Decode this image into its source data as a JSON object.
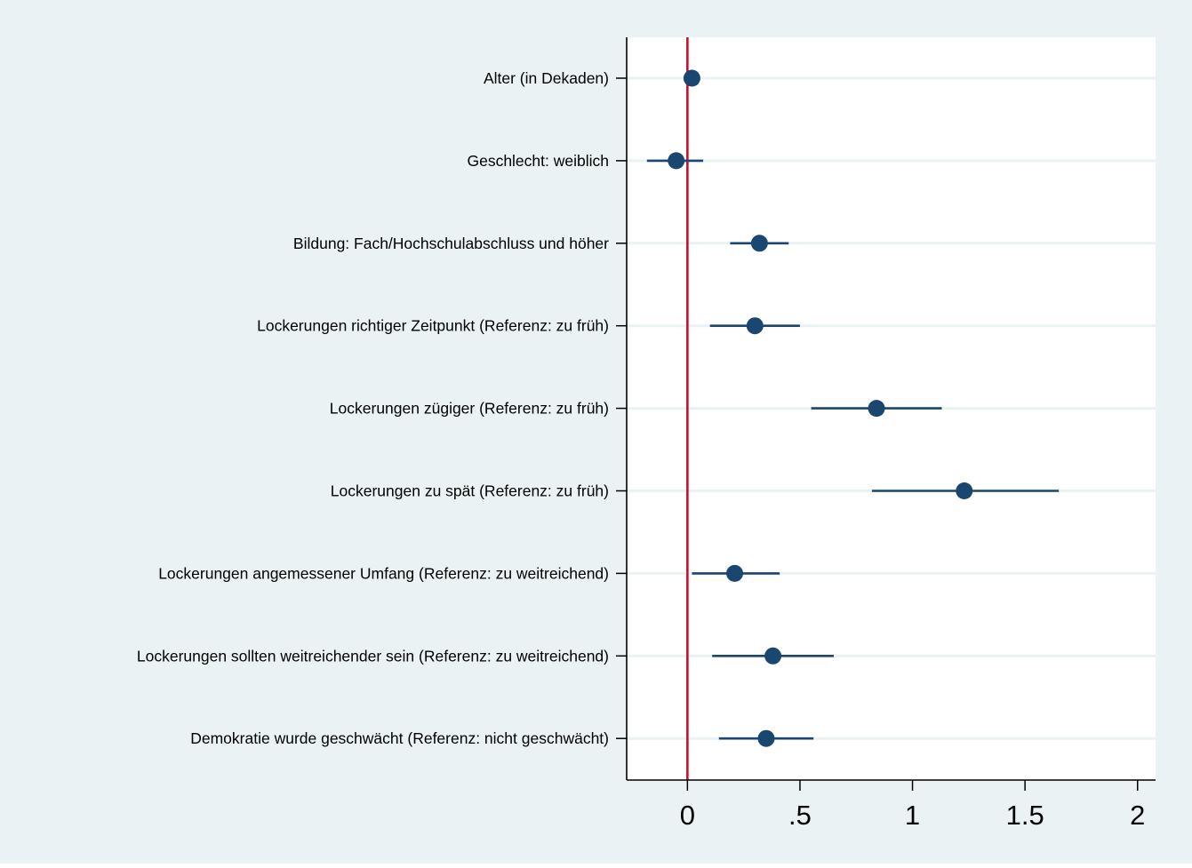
{
  "chart_data": {
    "type": "scatter",
    "subtype": "coefficient-plot",
    "title": "",
    "xlabel": "",
    "ylabel": "",
    "xlim": [
      -0.27,
      2.08
    ],
    "xticks": [
      0,
      0.5,
      1,
      1.5,
      2
    ],
    "xtick_labels": [
      "0",
      ".5",
      "1",
      "1.5",
      "2"
    ],
    "reference_line": {
      "x": 0,
      "color": "#c8102e"
    },
    "grid": "horizontal",
    "legend": "none",
    "colors": {
      "outer_background": "#eaf2f3",
      "plot_background": "#ffffff",
      "marker": "#1a476f",
      "gridline": "#eaf2f3",
      "axis": "#000000"
    },
    "rows": [
      {
        "label": "Alter (in Dekaden)",
        "estimate": 0.02,
        "lower": -0.01,
        "upper": 0.05
      },
      {
        "label": "Geschlecht: weiblich",
        "estimate": -0.05,
        "lower": -0.18,
        "upper": 0.07
      },
      {
        "label": "Bildung: Fach/Hochschulabschluss und höher",
        "estimate": 0.32,
        "lower": 0.19,
        "upper": 0.45
      },
      {
        "label": "Lockerungen richtiger Zeitpunkt (Referenz: zu früh)",
        "estimate": 0.3,
        "lower": 0.1,
        "upper": 0.5
      },
      {
        "label": "Lockerungen zügiger (Referenz: zu früh)",
        "estimate": 0.84,
        "lower": 0.55,
        "upper": 1.13
      },
      {
        "label": "Lockerungen zu spät (Referenz: zu früh)",
        "estimate": 1.23,
        "lower": 0.82,
        "upper": 1.65
      },
      {
        "label": "Lockerungen angemessener Umfang (Referenz: zu weitreichend)",
        "estimate": 0.21,
        "lower": 0.02,
        "upper": 0.41
      },
      {
        "label": "Lockerungen sollten weitreichender sein (Referenz: zu weitreichend)",
        "estimate": 0.38,
        "lower": 0.11,
        "upper": 0.65
      },
      {
        "label": "Demokratie wurde geschwächt (Referenz: nicht geschwächt)",
        "estimate": 0.35,
        "lower": 0.14,
        "upper": 0.56
      }
    ]
  }
}
